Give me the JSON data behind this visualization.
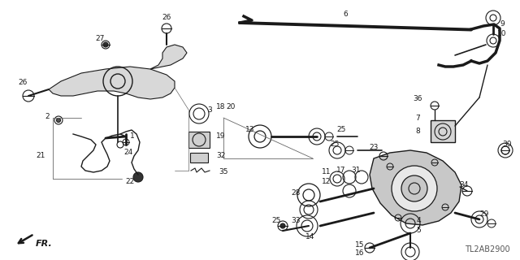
{
  "bg_color": "#ffffff",
  "line_color": "#1a1a1a",
  "gray_color": "#666666",
  "fig_width": 6.4,
  "fig_height": 3.2,
  "dpi": 100,
  "watermark": "TL2AB2900"
}
